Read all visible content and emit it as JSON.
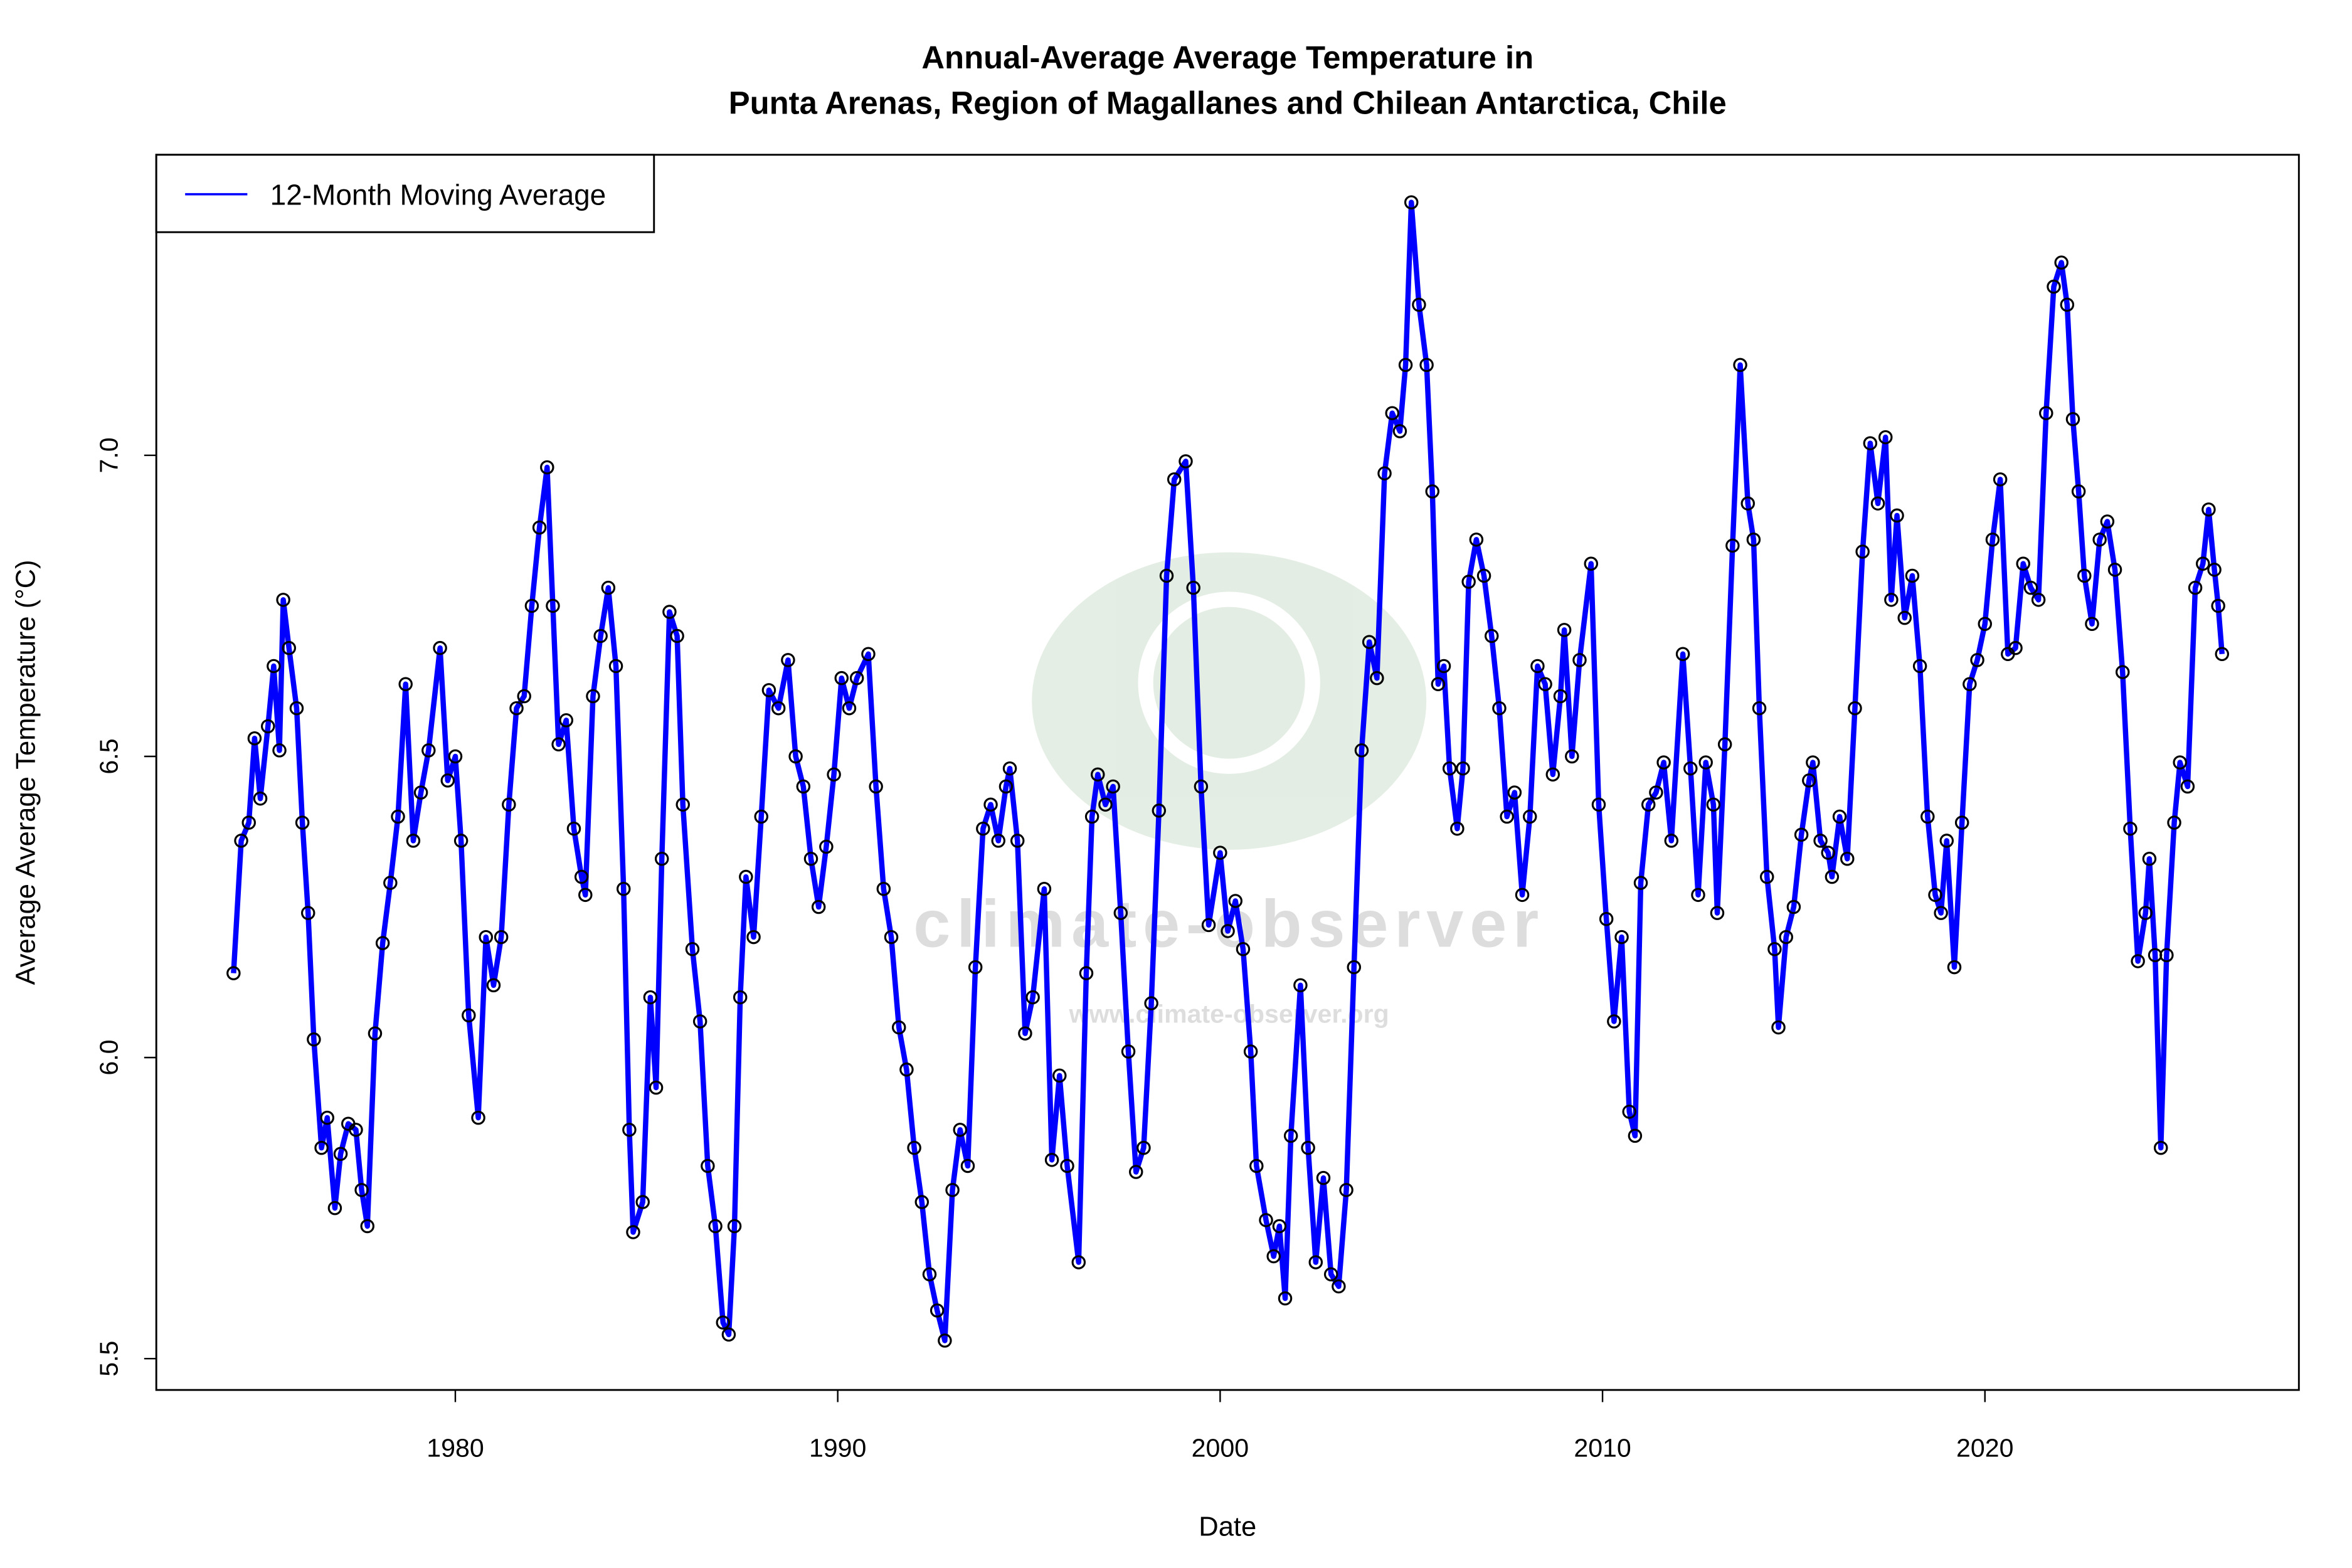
{
  "chart_data": {
    "type": "line",
    "title_lines": [
      "Annual-Average Average Temperature in",
      "Punta Arenas, Region of Magallanes and Chilean Antarctica, Chile"
    ],
    "x_label": "Date",
    "y_label": "Average Average Temperature (°C)",
    "watermark": {
      "name": "climate-observer",
      "url": "www.climate-observer.org"
    },
    "legend_position": "top-left",
    "markers": true,
    "marker_color": "#000000",
    "xlim": [
      1972.18,
      2028.21
    ],
    "ylim": [
      5.448,
      7.499
    ],
    "xticks": [
      1980,
      1990,
      2000,
      2010,
      2020
    ],
    "yticks": [
      5.5,
      {
        "value": 6,
        "label": "6.0"
      },
      6.5,
      {
        "value": 7,
        "label": "7.0"
      }
    ],
    "x": [
      1974.2,
      1974.4,
      1974.6,
      1974.75,
      1974.9,
      1975.1,
      1975.25,
      1975.4,
      1975.5,
      1975.65,
      1975.85,
      1976.0,
      1976.15,
      1976.3,
      1976.5,
      1976.65,
      1976.85,
      1977.0,
      1977.2,
      1977.4,
      1977.55,
      1977.7,
      1977.9,
      1978.1,
      1978.3,
      1978.5,
      1978.7,
      1978.9,
      1979.1,
      1979.3,
      1979.6,
      1979.8,
      1980.0,
      1980.15,
      1980.35,
      1980.6,
      1980.8,
      1981.0,
      1981.2,
      1981.4,
      1981.6,
      1981.8,
      1982.0,
      1982.2,
      1982.4,
      1982.55,
      1982.7,
      1982.9,
      1983.1,
      1983.3,
      1983.4,
      1983.6,
      1983.8,
      1984.0,
      1984.2,
      1984.4,
      1984.55,
      1984.65,
      1984.9,
      1985.1,
      1985.25,
      1985.4,
      1985.6,
      1985.8,
      1985.95,
      1986.2,
      1986.4,
      1986.6,
      1986.8,
      1987.0,
      1987.15,
      1987.3,
      1987.45,
      1987.6,
      1987.8,
      1988.0,
      1988.2,
      1988.45,
      1988.7,
      1988.9,
      1989.1,
      1989.3,
      1989.5,
      1989.7,
      1989.9,
      1990.1,
      1990.3,
      1990.5,
      1990.8,
      1991.0,
      1991.2,
      1991.4,
      1991.6,
      1991.8,
      1992.0,
      1992.2,
      1992.4,
      1992.6,
      1992.8,
      1993.0,
      1993.2,
      1993.4,
      1993.6,
      1993.8,
      1994.0,
      1994.2,
      1994.4,
      1994.5,
      1994.7,
      1994.9,
      1995.1,
      1995.4,
      1995.6,
      1995.8,
      1996.0,
      1996.3,
      1996.5,
      1996.65,
      1996.8,
      1997.0,
      1997.2,
      1997.4,
      1997.6,
      1997.8,
      1998.0,
      1998.2,
      1998.4,
      1998.6,
      1998.8,
      1999.1,
      1999.3,
      1999.5,
      1999.7,
      2000.0,
      2000.2,
      2000.4,
      2000.6,
      2000.8,
      2000.95,
      2001.2,
      2001.4,
      2001.55,
      2001.7,
      2001.85,
      2002.1,
      2002.3,
      2002.5,
      2002.7,
      2002.9,
      2003.1,
      2003.3,
      2003.5,
      2003.7,
      2003.9,
      2004.1,
      2004.3,
      2004.5,
      2004.7,
      2004.85,
      2005.0,
      2005.2,
      2005.4,
      2005.55,
      2005.7,
      2005.85,
      2006.0,
      2006.2,
      2006.35,
      2006.5,
      2006.7,
      2006.9,
      2007.1,
      2007.3,
      2007.5,
      2007.7,
      2007.9,
      2008.1,
      2008.3,
      2008.5,
      2008.7,
      2008.9,
      2009.0,
      2009.2,
      2009.4,
      2009.7,
      2009.9,
      2010.1,
      2010.3,
      2010.5,
      2010.7,
      2010.85,
      2011.0,
      2011.2,
      2011.4,
      2011.6,
      2011.8,
      2012.1,
      2012.3,
      2012.5,
      2012.7,
      2012.9,
      2013.0,
      2013.2,
      2013.4,
      2013.6,
      2013.8,
      2013.95,
      2014.1,
      2014.3,
      2014.5,
      2014.6,
      2014.8,
      2015.0,
      2015.2,
      2015.4,
      2015.5,
      2015.7,
      2015.9,
      2016.0,
      2016.2,
      2016.4,
      2016.6,
      2016.8,
      2017.0,
      2017.2,
      2017.4,
      2017.55,
      2017.7,
      2017.9,
      2018.1,
      2018.3,
      2018.5,
      2018.7,
      2018.85,
      2019.0,
      2019.2,
      2019.4,
      2019.6,
      2019.8,
      2020.0,
      2020.2,
      2020.4,
      2020.6,
      2020.8,
      2021.0,
      2021.2,
      2021.4,
      2021.6,
      2021.8,
      2022.0,
      2022.15,
      2022.3,
      2022.45,
      2022.6,
      2022.8,
      2023.0,
      2023.2,
      2023.4,
      2023.6,
      2023.8,
      2024.0,
      2024.2,
      2024.3,
      2024.45,
      2024.6,
      2024.75,
      2024.95,
      2025.1,
      2025.3,
      2025.5,
      2025.7,
      2025.85,
      2026.0,
      2026.1,
      2026.2
    ],
    "series": [
      {
        "name": "12-Month Moving Average",
        "color": "#0000ff",
        "values": [
          6.14,
          6.36,
          6.39,
          6.53,
          6.43,
          6.55,
          6.65,
          6.51,
          6.76,
          6.68,
          6.58,
          6.39,
          6.24,
          6.03,
          5.85,
          5.9,
          5.75,
          5.84,
          5.89,
          5.88,
          5.78,
          5.72,
          6.04,
          6.19,
          6.29,
          6.4,
          6.62,
          6.36,
          6.44,
          6.51,
          6.68,
          6.46,
          6.5,
          6.36,
          6.07,
          5.9,
          6.2,
          6.12,
          6.2,
          6.42,
          6.58,
          6.6,
          6.75,
          6.88,
          6.98,
          6.75,
          6.52,
          6.56,
          6.38,
          6.3,
          6.27,
          6.6,
          6.7,
          6.78,
          6.65,
          6.28,
          5.88,
          5.71,
          5.76,
          6.1,
          5.95,
          6.33,
          6.74,
          6.7,
          6.42,
          6.18,
          6.06,
          5.82,
          5.72,
          5.56,
          5.54,
          5.72,
          6.1,
          6.3,
          6.2,
          6.4,
          6.61,
          6.58,
          6.66,
          6.5,
          6.45,
          6.33,
          6.25,
          6.35,
          6.47,
          6.63,
          6.58,
          6.63,
          6.67,
          6.45,
          6.28,
          6.2,
          6.05,
          5.98,
          5.85,
          5.76,
          5.64,
          5.58,
          5.53,
          5.78,
          5.88,
          5.82,
          6.15,
          6.38,
          6.42,
          6.36,
          6.45,
          6.48,
          6.36,
          6.04,
          6.1,
          6.28,
          5.83,
          5.97,
          5.82,
          5.66,
          6.14,
          6.4,
          6.47,
          6.42,
          6.45,
          6.24,
          6.01,
          5.81,
          5.85,
          6.09,
          6.41,
          6.8,
          6.96,
          6.99,
          6.78,
          6.45,
          6.22,
          6.34,
          6.21,
          6.26,
          6.18,
          6.01,
          5.82,
          5.73,
          5.67,
          5.72,
          5.6,
          5.87,
          6.12,
          5.85,
          5.66,
          5.8,
          5.64,
          5.62,
          5.78,
          6.15,
          6.51,
          6.69,
          6.63,
          6.97,
          7.07,
          7.04,
          7.15,
          7.42,
          7.25,
          7.15,
          6.94,
          6.62,
          6.65,
          6.48,
          6.38,
          6.48,
          6.79,
          6.86,
          6.8,
          6.7,
          6.58,
          6.4,
          6.44,
          6.27,
          6.4,
          6.65,
          6.62,
          6.47,
          6.6,
          6.71,
          6.5,
          6.66,
          6.82,
          6.42,
          6.23,
          6.06,
          6.2,
          5.91,
          5.87,
          6.29,
          6.42,
          6.44,
          6.49,
          6.36,
          6.67,
          6.48,
          6.27,
          6.49,
          6.42,
          6.24,
          6.52,
          6.85,
          7.15,
          6.92,
          6.86,
          6.58,
          6.3,
          6.18,
          6.05,
          6.2,
          6.25,
          6.37,
          6.46,
          6.49,
          6.36,
          6.34,
          6.3,
          6.4,
          6.33,
          6.58,
          6.84,
          7.02,
          6.92,
          7.03,
          6.76,
          6.9,
          6.73,
          6.8,
          6.65,
          6.4,
          6.27,
          6.24,
          6.36,
          6.15,
          6.39,
          6.62,
          6.66,
          6.72,
          6.86,
          6.96,
          6.67,
          6.68,
          6.82,
          6.78,
          6.76,
          7.07,
          7.28,
          7.32,
          7.25,
          7.06,
          6.94,
          6.8,
          6.72,
          6.86,
          6.89,
          6.81,
          6.64,
          6.38,
          6.16,
          6.24,
          6.33,
          6.17,
          5.85,
          6.17,
          6.39,
          6.49,
          6.45,
          6.78,
          6.82,
          6.91,
          6.81,
          6.75,
          6.67
        ]
      }
    ]
  }
}
